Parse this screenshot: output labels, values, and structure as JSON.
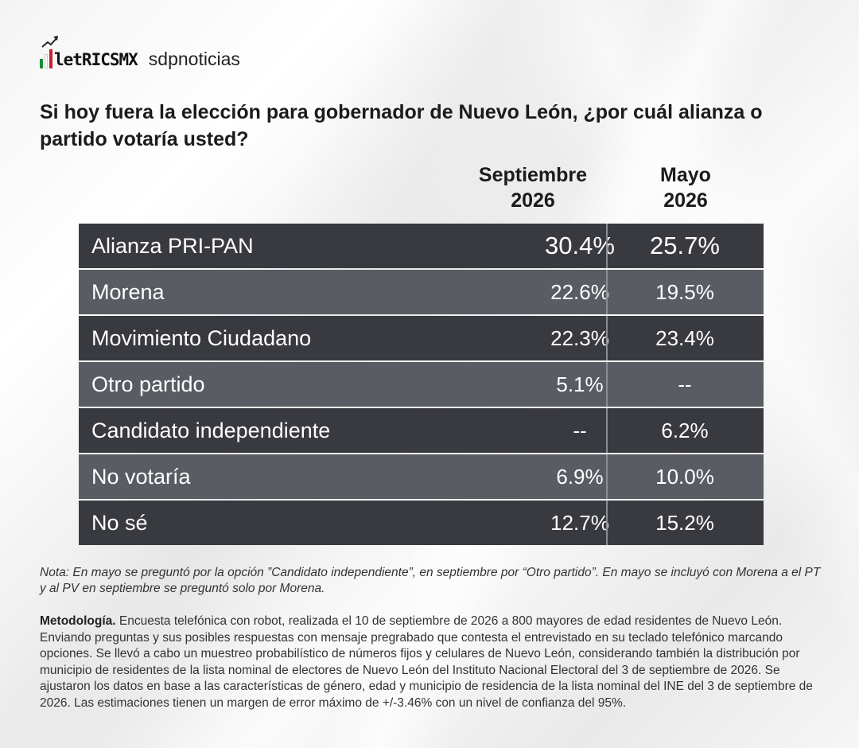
{
  "brand": {
    "metrics_logo": "letRICSMX",
    "partner_logo": "sdpnoticias",
    "flag_colors": [
      "#1f8a3b",
      "#ffffff",
      "#c8202a"
    ]
  },
  "question": "Si hoy fuera la elección para gobernador de Nuevo León, ¿por cuál alianza o partido votaría usted?",
  "chart_data": {
    "type": "table",
    "columns": [
      {
        "line1": "Septiembre",
        "line2": "2026"
      },
      {
        "line1": "Mayo",
        "line2": "2026"
      }
    ],
    "rows": [
      {
        "label": "Alianza PRI-PAN",
        "septiembre": "30.4%",
        "mayo": "25.7%"
      },
      {
        "label": "Morena",
        "septiembre": "22.6%",
        "mayo": "19.5%"
      },
      {
        "label": "Movimiento Ciudadano",
        "septiembre": "22.3%",
        "mayo": "23.4%"
      },
      {
        "label": "Otro partido",
        "septiembre": "5.1%",
        "mayo": "--"
      },
      {
        "label": "Candidato independiente",
        "septiembre": "--",
        "mayo": "6.2%"
      },
      {
        "label": "No votaría",
        "septiembre": "6.9%",
        "mayo": "10.0%"
      },
      {
        "label": "No sé",
        "septiembre": "12.7%",
        "mayo": "15.2%"
      }
    ]
  },
  "note": "Nota: En mayo se preguntó por la opción ”Candidato independiente”, en septiembre por “Otro partido”. En mayo se incluyó con Morena a el PT y al PV en septiembre se preguntó solo por Morena.",
  "methodology": {
    "heading": "Metodología.",
    "text": " Encuesta telefónica con robot, realizada el 10 de septiembre de 2026 a 800 mayores de edad residentes de Nuevo León. Enviando preguntas y sus posibles respuestas con mensaje pregrabado que contesta el entrevistado en su teclado telefónico marcando opciones. Se llevó a cabo un muestreo probabilístico de números fijos y celulares de Nuevo León, considerando también la distribución por municipio de residentes de la lista nominal de electores de Nuevo León del Instituto Nacional Electoral del 3 de septiembre de 2026. Se ajustaron los datos en base a las características de género, edad y municipio de residencia de la lista nominal del INE del 3 de septiembre de 2026. Las estimaciones tienen un margen de error máximo de +/-3.46% con un nivel de confianza del 95%."
  }
}
